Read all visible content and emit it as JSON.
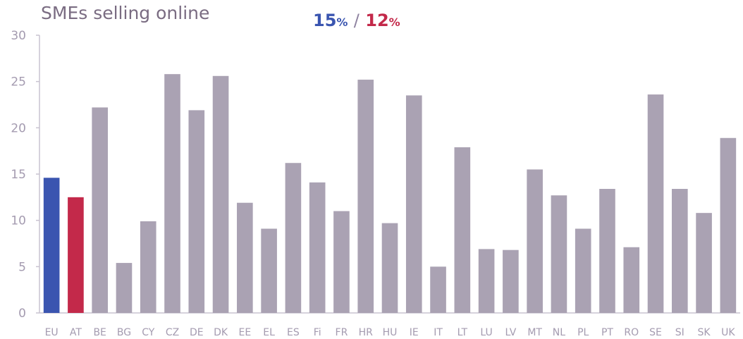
{
  "chart_data": {
    "type": "bar",
    "title": "SMEs selling online",
    "headline": {
      "eu_value": "15",
      "at_value": "12",
      "unit": "%",
      "separator": "/"
    },
    "ylim": [
      0,
      30
    ],
    "yticks": [
      0,
      5,
      10,
      15,
      20,
      25,
      30
    ],
    "categories": [
      "EU",
      "AT",
      "BE",
      "BG",
      "CY",
      "CZ",
      "DE",
      "DK",
      "EE",
      "EL",
      "ES",
      "Fi",
      "FR",
      "HR",
      "HU",
      "IE",
      "IT",
      "LT",
      "LU",
      "LV",
      "MT",
      "NL",
      "PL",
      "PT",
      "RO",
      "SE",
      "SI",
      "SK",
      "UK"
    ],
    "values": [
      14.6,
      12.5,
      22.2,
      5.4,
      9.9,
      25.8,
      21.9,
      25.6,
      11.9,
      9.1,
      16.2,
      14.1,
      11.0,
      25.2,
      9.7,
      23.5,
      5.0,
      17.9,
      6.9,
      6.8,
      15.5,
      12.7,
      9.1,
      13.4,
      7.1,
      23.6,
      13.4,
      10.8,
      18.9
    ],
    "colors": {
      "default": "#aaa2b3",
      "EU": "#3a55b0",
      "AT": "#c3294a",
      "axis": "#c9c3d0",
      "tick_label": "#a49bb0"
    }
  }
}
